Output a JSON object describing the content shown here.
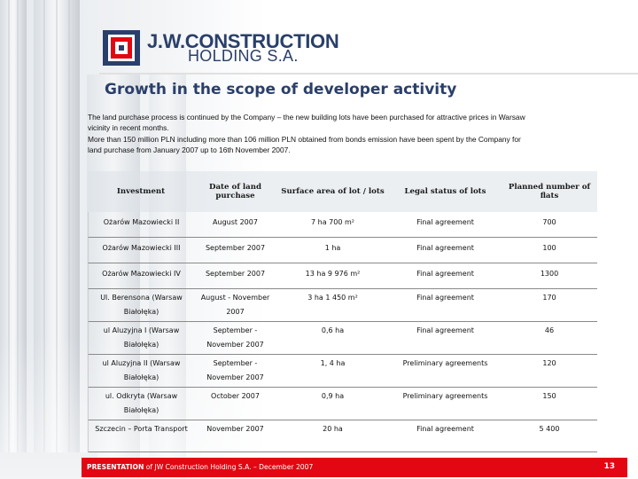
{
  "header": {
    "logo_line1": "J.W.CONSTRUCTION",
    "logo_line2": "HOLDING S.A.",
    "brand_colors": {
      "navy": "#2a3f6a",
      "red": "#e30613"
    }
  },
  "slide": {
    "title": "Growth in the scope of developer activity",
    "intro_lines": [
      "The land purchase process is continued by the Company – the new building lots have been purchased for attractive prices in Warsaw",
      "vicinity in recent months.",
      "More than 150 million PLN including more than 106 million PLN obtained from bonds emission have been spent by the Company for",
      "land purchase from January 2007 up to 16th November 2007."
    ]
  },
  "table": {
    "headers": [
      "Investment",
      "Date of land purchase",
      "Surface area of lot / lots",
      "Legal status of lots",
      "Planned number of flats"
    ],
    "rows": [
      [
        "Ożarów Mazowiecki II",
        "August 2007",
        "7 ha 700 m²",
        "Final agreement",
        "700"
      ],
      [
        "Ożarów Mazowiecki III",
        "September 2007",
        "1 ha",
        "Final agreement",
        "100"
      ],
      [
        "Ożarów Mazowiecki  IV",
        "September 2007",
        "13 ha 9 976 m²",
        "Final agreement",
        "1300"
      ],
      [
        "Ul. Berensona (Warsaw Białołęka)",
        "August - November 2007",
        "3 ha 1 450 m²",
        "Final agreement",
        "170"
      ],
      [
        "ul Aluzyjna I (Warsaw Białołęka)",
        "September - November 2007",
        "0,6 ha",
        "Final agreement",
        "46"
      ],
      [
        "ul Aluzyjna II (Warsaw Białołęka)",
        "September - November 2007",
        "1, 4 ha",
        "Preliminary agreements",
        "120"
      ],
      [
        "ul. Odkryta (Warsaw Białołęka)",
        "October 2007",
        "0,9 ha",
        "Preliminary agreements",
        "150"
      ],
      [
        "Szczecin – Porta Transport",
        "November 2007",
        "20 ha",
        "Final agreement",
        "5 400"
      ]
    ]
  },
  "footer": {
    "presentation": "PRESENTATION",
    "text": " of JW Construction Holding S.A. – December 2007",
    "page": "13"
  }
}
